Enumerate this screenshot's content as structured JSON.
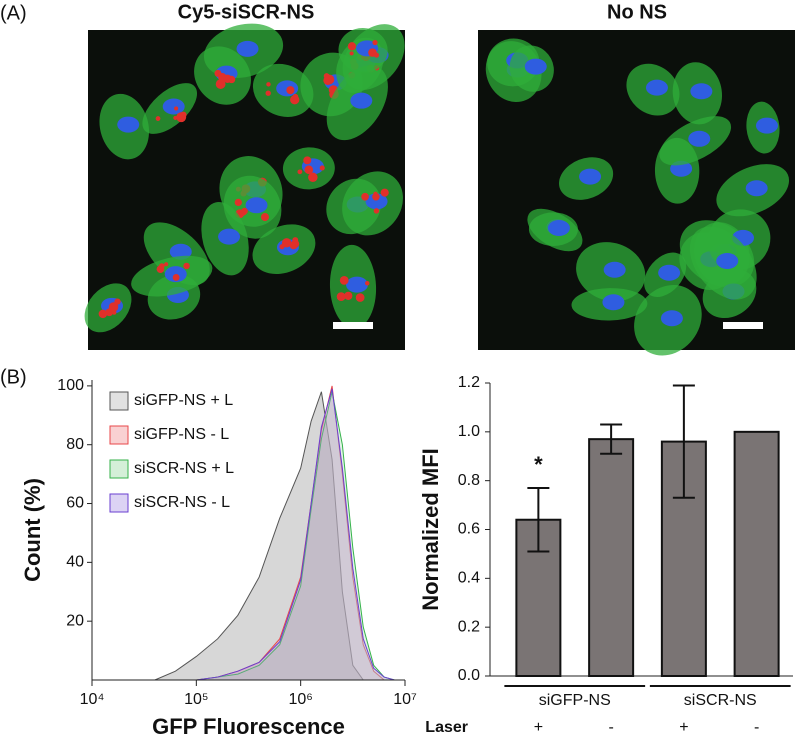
{
  "panel_labels": [
    "(A)",
    "(B)"
  ],
  "images": [
    {
      "title": "Cy5-siSCR-NS"
    },
    {
      "title": "No NS"
    }
  ],
  "chart_data": [
    {
      "type": "area",
      "xlabel": "GFP Fluorescence",
      "ylabel": "Count (%)",
      "xscale": "log",
      "x": [
        40000,
        63000,
        100000,
        160000,
        250000,
        400000,
        630000,
        1000000,
        1260000,
        1580000,
        2000000,
        2510000,
        3160000,
        3980000,
        5010000,
        6310000,
        7940000
      ],
      "series": [
        {
          "name": "siGFP-NS + L",
          "color": "#555555",
          "fill": "#bdbdbd",
          "values": [
            0,
            3,
            8,
            14,
            22,
            35,
            55,
            72,
            88,
            98,
            75,
            30,
            5,
            0,
            0,
            0,
            0
          ]
        },
        {
          "name": "siGFP-NS - L",
          "color": "#e8474a",
          "fill": "#f19a9c",
          "values": [
            0,
            0,
            0,
            1,
            3,
            6,
            14,
            35,
            60,
            85,
            100,
            70,
            35,
            12,
            3,
            0,
            0
          ]
        },
        {
          "name": "siSCR-NS + L",
          "color": "#35b24a",
          "fill": "#9fdba8",
          "values": [
            0,
            0,
            0,
            1,
            2,
            5,
            12,
            32,
            58,
            82,
            98,
            80,
            45,
            18,
            5,
            1,
            0
          ]
        },
        {
          "name": "siSCR-NS - L",
          "color": "#6a3fd0",
          "fill": "#b29de6",
          "values": [
            0,
            0,
            0,
            1,
            3,
            6,
            13,
            34,
            60,
            86,
            99,
            72,
            38,
            14,
            4,
            1,
            0
          ]
        }
      ],
      "xlim": [
        10000,
        10000000
      ],
      "xticks": [
        {
          "value": 10000,
          "label": "10⁴"
        },
        {
          "value": 100000,
          "label": "10⁵"
        },
        {
          "value": 1000000,
          "label": "10⁶"
        },
        {
          "value": 10000000,
          "label": "10⁷"
        }
      ],
      "ylim": [
        0,
        102
      ],
      "yticks": [
        20,
        40,
        60,
        80,
        100
      ],
      "legend": "top-left"
    },
    {
      "type": "bar",
      "ylabel": "Normalized MFI",
      "color": "#7a7474",
      "categories": [
        "+",
        "-",
        "+",
        "-"
      ],
      "row_label": "Laser",
      "groups": [
        "siGFP-NS",
        "siSCR-NS"
      ],
      "values": [
        0.64,
        0.97,
        0.96,
        1.0
      ],
      "errors": [
        0.13,
        0.06,
        0.23,
        null
      ],
      "annotations": [
        {
          "text": "*",
          "index": 0
        }
      ],
      "ylim": [
        0,
        1.2
      ],
      "yticks": [
        {
          "value": 0,
          "label": "0.0"
        },
        0.2,
        0.4,
        0.6,
        0.8,
        {
          "value": 1,
          "label": "1.0"
        },
        1.2
      ]
    }
  ]
}
